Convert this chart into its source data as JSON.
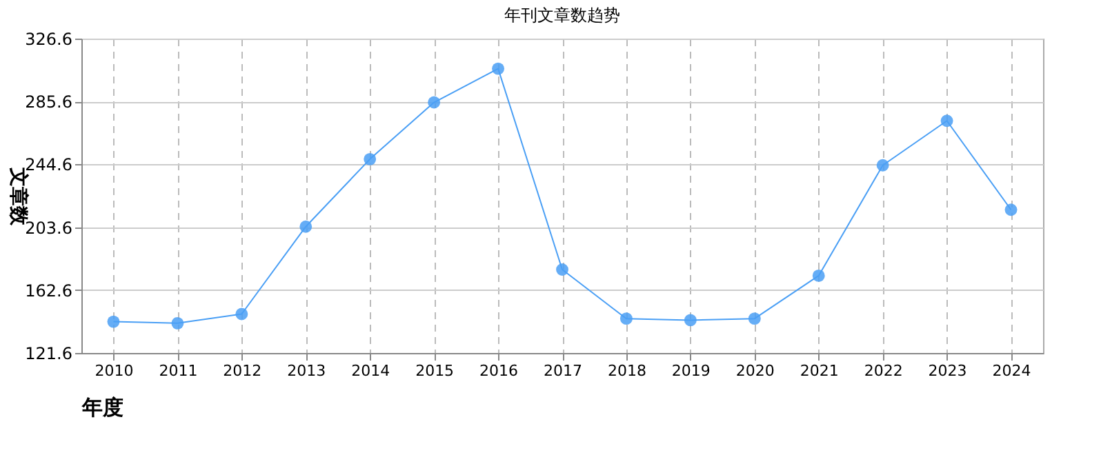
{
  "chart_data": {
    "type": "line",
    "title": "年刊文章数趋势",
    "xlabel": "年度",
    "ylabel": "文章数",
    "categories": [
      "2010",
      "2011",
      "2012",
      "2013",
      "2014",
      "2015",
      "2016",
      "2017",
      "2018",
      "2019",
      "2020",
      "2021",
      "2022",
      "2023",
      "2024"
    ],
    "series": [
      {
        "color": "#4a9ff5",
        "values": [
          142,
          141,
          147,
          204,
          248,
          285,
          307,
          176,
          144,
          143,
          144,
          172,
          244,
          273,
          215
        ]
      }
    ],
    "ylim": [
      121.6,
      326.6
    ],
    "yticks": [
      121.6,
      162.6,
      203.6,
      244.6,
      285.6,
      326.6
    ],
    "grid": true,
    "marker": "circle",
    "line_style": "solid",
    "legend": false
  }
}
